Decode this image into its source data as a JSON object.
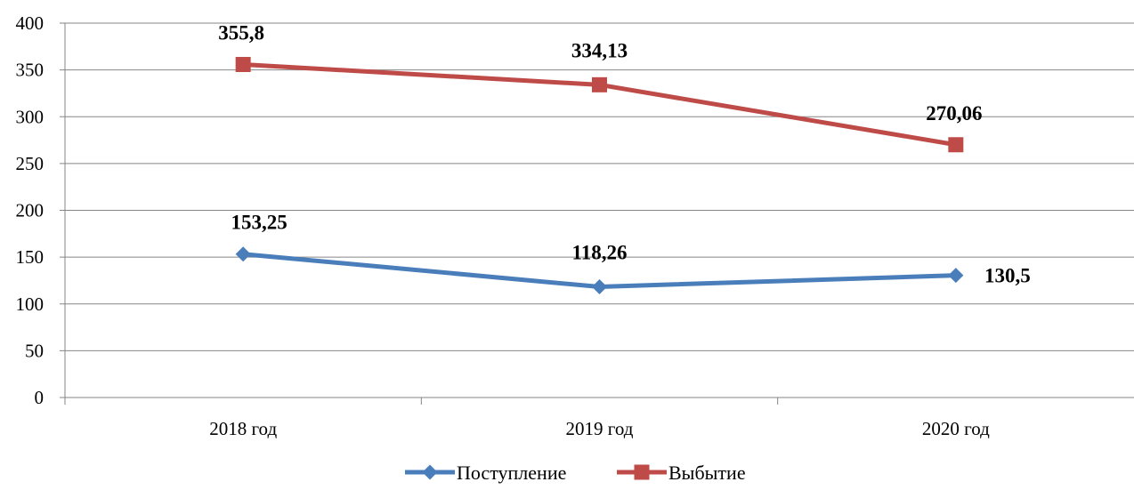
{
  "chart_data": {
    "type": "line",
    "categories": [
      "2018 год",
      "2019 год",
      "2020 год"
    ],
    "series": [
      {
        "name": "Поступление",
        "values": [
          153.25,
          118.26,
          130.5
        ],
        "labels": [
          "153,25",
          "118,26",
          "130,5"
        ],
        "color": "#4a7ebb",
        "marker": "diamond"
      },
      {
        "name": "Выбытие",
        "values": [
          355.8,
          334.13,
          270.06
        ],
        "labels": [
          "355,8",
          "334,13",
          "270,06"
        ],
        "color": "#be4b48",
        "marker": "square"
      }
    ],
    "ylim": [
      0,
      400
    ],
    "yticks": [
      0,
      50,
      100,
      150,
      200,
      250,
      300,
      350,
      400
    ],
    "grid": true,
    "legend_position": "bottom"
  }
}
